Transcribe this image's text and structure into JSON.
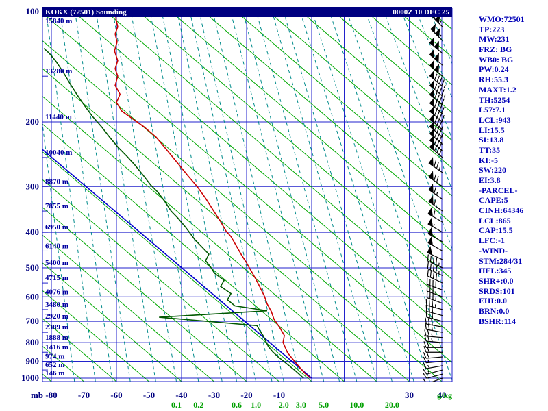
{
  "window": {
    "title": "KOKX (72501) Sounding",
    "datetime": "0000Z 10 DEC 25"
  },
  "stats_panel": {
    "lines": [
      "WMO:72501",
      "TP:223",
      "MW:231",
      "FRZ: BG",
      "WB0: BG",
      "PW:0.24",
      "RH:55.3",
      "MAXT:1.2",
      "TH:5254",
      "L57:7.1",
      "LCL:943",
      "LI:15.5",
      "SI:13.8",
      "TT:35",
      "KI:-5",
      "SW:220",
      "EI:3.8",
      "-PARCEL-",
      "CAPE:5",
      "CINH:64346",
      "LCL:865",
      "CAP:15.5",
      "LFC:-1",
      "-WIND-",
      "STM:284/31",
      "HEL:345",
      "SHR+:0.0",
      "SRDS:101",
      "EHI:0.0",
      "BRN:0.0",
      "BSHR:114"
    ]
  },
  "chart_data": {
    "type": "line",
    "subtype": "thermodynamic_sounding_log_p",
    "station": "KOKX (72501)",
    "valid": "0000Z 10 DEC 25",
    "pressure_axis_label": "mb",
    "pressure_ticks": [
      100,
      200,
      300,
      400,
      500,
      600,
      700,
      800,
      900,
      1000
    ],
    "ylim": [
      1000,
      100
    ],
    "xlim": [
      -80,
      40
    ],
    "temp_ticks": [
      -80,
      -70,
      -60,
      -50,
      -40,
      -30,
      -20,
      -10,
      0,
      10,
      20,
      30,
      40
    ],
    "temp_labels": [
      {
        "v": -80,
        "label": "-80"
      },
      {
        "v": -70,
        "label": "-70"
      },
      {
        "v": -60,
        "label": "-60"
      },
      {
        "v": -50,
        "label": "-50"
      },
      {
        "v": -40,
        "label": "-40"
      },
      {
        "v": -30,
        "label": "-30"
      },
      {
        "v": -20,
        "label": "-20"
      },
      {
        "v": -10,
        "label": "-10"
      },
      {
        "v": 30,
        "label": "30"
      },
      {
        "v": 40,
        "label": "40"
      }
    ],
    "mixing_ratio_labels": [
      0.1,
      0.2,
      0.6,
      1.0,
      2.0,
      3.0,
      5.0,
      10.0,
      20.0
    ],
    "mixing_ratio_extra": [
      0.002,
      0.005,
      0.01,
      0.02,
      0.05,
      0.4,
      1.5,
      7,
      15,
      30,
      40,
      60,
      90,
      140,
      220,
      350,
      550,
      900
    ],
    "mixing_ratio_unit": "g/kg",
    "height_labels": [
      {
        "p": 100,
        "label": "15840 m"
      },
      {
        "p": 150,
        "label": "13280 m"
      },
      {
        "p": 200,
        "label": "11440 m"
      },
      {
        "p": 250,
        "label": "10040 m"
      },
      {
        "p": 300,
        "label": "8870 m"
      },
      {
        "p": 350,
        "label": "7855 m"
      },
      {
        "p": 400,
        "label": "6950 m"
      },
      {
        "p": 450,
        "label": "6140 m"
      },
      {
        "p": 500,
        "label": "5400 m"
      },
      {
        "p": 550,
        "label": "4715 m"
      },
      {
        "p": 600,
        "label": "4076 m"
      },
      {
        "p": 650,
        "label": "3480 m"
      },
      {
        "p": 700,
        "label": "2920 m"
      },
      {
        "p": 750,
        "label": "2389 m"
      },
      {
        "p": 800,
        "label": "1888 m"
      },
      {
        "p": 850,
        "label": "1416 m"
      },
      {
        "p": 900,
        "label": "974 m"
      },
      {
        "p": 950,
        "label": "652 m"
      },
      {
        "p": 1000,
        "label": "146 m"
      }
    ],
    "temperature_profile": [
      [
        1000,
        -0.4
      ],
      [
        970,
        -2.1
      ],
      [
        910,
        -4.8
      ],
      [
        853,
        -7.4
      ],
      [
        799,
        -8.8
      ],
      [
        765,
        -8.4
      ],
      [
        726,
        -9.9
      ],
      [
        690,
        -11.6
      ],
      [
        658,
        -12.4
      ],
      [
        627,
        -13.7
      ],
      [
        598,
        -14.5
      ],
      [
        567,
        -15.8
      ],
      [
        538,
        -17.1
      ],
      [
        508,
        -18.7
      ],
      [
        485,
        -20.0
      ],
      [
        459,
        -21.7
      ],
      [
        435,
        -23.2
      ],
      [
        411,
        -24.8
      ],
      [
        397,
        -26.3
      ],
      [
        374,
        -28.0
      ],
      [
        350,
        -30.1
      ],
      [
        323,
        -32.6
      ],
      [
        300,
        -35.2
      ],
      [
        280,
        -38.1
      ],
      [
        257,
        -41.5
      ],
      [
        238,
        -44.6
      ],
      [
        220,
        -47.8
      ],
      [
        206,
        -51.6
      ],
      [
        195,
        -55.4
      ],
      [
        187,
        -58.3
      ],
      [
        177,
        -60.0
      ],
      [
        168,
        -58.9
      ],
      [
        159,
        -60.4
      ],
      [
        150,
        -59.6
      ],
      [
        143,
        -60.4
      ],
      [
        136,
        -59.6
      ],
      [
        128,
        -60.6
      ],
      [
        121,
        -59.8
      ],
      [
        115,
        -60.4
      ],
      [
        110,
        -59.6
      ],
      [
        104,
        -60.2
      ],
      [
        100,
        -59.6
      ]
    ],
    "dewpoint_profile": [
      [
        1000,
        -2.5
      ],
      [
        950,
        -5.3
      ],
      [
        903,
        -8.4
      ],
      [
        875,
        -10.3
      ],
      [
        847,
        -12.0
      ],
      [
        820,
        -13.3
      ],
      [
        793,
        -14.1
      ],
      [
        766,
        -14.9
      ],
      [
        741,
        -16.0
      ],
      [
        719,
        -16.8
      ],
      [
        682,
        -46.9
      ],
      [
        655,
        -13.7
      ],
      [
        635,
        -23.6
      ],
      [
        611,
        -25.9
      ],
      [
        588,
        -24.8
      ],
      [
        562,
        -28.0
      ],
      [
        541,
        -26.9
      ],
      [
        517,
        -29.9
      ],
      [
        500,
        -30.9
      ],
      [
        478,
        -32.6
      ],
      [
        459,
        -31.6
      ],
      [
        439,
        -33.7
      ],
      [
        420,
        -35.8
      ],
      [
        403,
        -37.3
      ],
      [
        386,
        -38.9
      ],
      [
        366,
        -41.1
      ],
      [
        350,
        -43.2
      ],
      [
        328,
        -45.3
      ],
      [
        310,
        -47.4
      ],
      [
        297,
        -49.5
      ],
      [
        278,
        -52.0
      ],
      [
        261,
        -54.5
      ],
      [
        248,
        -56.8
      ],
      [
        234,
        -59.6
      ],
      [
        220,
        -62.1
      ],
      [
        206,
        -64.6
      ],
      [
        193,
        -67.4
      ],
      [
        179,
        -70.1
      ],
      [
        168,
        -72.2
      ],
      [
        157,
        -74.3
      ],
      [
        146,
        -76.4
      ],
      [
        137,
        -78.5
      ],
      [
        130,
        -80.6
      ],
      [
        126,
        -82.3
      ]
    ],
    "parcel_line": [
      [
        1000,
        0.0
      ],
      [
        238,
        -82.7
      ]
    ],
    "wind_barbs": [
      [
        100,
        315,
        110
      ],
      [
        110,
        315,
        105
      ],
      [
        120,
        315,
        105
      ],
      [
        130,
        310,
        100
      ],
      [
        140,
        310,
        100
      ],
      [
        150,
        310,
        100
      ],
      [
        160,
        310,
        95
      ],
      [
        170,
        310,
        95
      ],
      [
        180,
        310,
        90
      ],
      [
        190,
        310,
        90
      ],
      [
        200,
        310,
        90
      ],
      [
        210,
        310,
        85
      ],
      [
        220,
        310,
        85
      ],
      [
        230,
        310,
        80
      ],
      [
        240,
        310,
        80
      ],
      [
        250,
        310,
        80
      ],
      [
        275,
        305,
        75
      ],
      [
        300,
        305,
        70
      ],
      [
        325,
        305,
        65
      ],
      [
        350,
        305,
        60
      ],
      [
        375,
        300,
        60
      ],
      [
        400,
        300,
        55
      ],
      [
        425,
        300,
        55
      ],
      [
        450,
        300,
        50
      ],
      [
        475,
        295,
        50
      ],
      [
        500,
        295,
        45
      ],
      [
        525,
        295,
        45
      ],
      [
        550,
        295,
        40
      ],
      [
        575,
        290,
        40
      ],
      [
        600,
        290,
        35
      ],
      [
        625,
        290,
        35
      ],
      [
        650,
        285,
        35
      ],
      [
        675,
        285,
        30
      ],
      [
        700,
        285,
        30
      ],
      [
        725,
        280,
        30
      ],
      [
        750,
        280,
        25
      ],
      [
        775,
        275,
        25
      ],
      [
        800,
        275,
        25
      ],
      [
        825,
        270,
        20
      ],
      [
        850,
        270,
        20
      ],
      [
        875,
        265,
        20
      ],
      [
        900,
        265,
        15
      ],
      [
        925,
        260,
        15
      ],
      [
        950,
        255,
        15
      ],
      [
        975,
        255,
        10
      ],
      [
        1000,
        250,
        10
      ]
    ],
    "colors": {
      "grid": "#2222cc",
      "adiabat": "#00a800",
      "mixing_line": "#008b8b",
      "temperature_curve": "#cc0000",
      "dewpoint_curve": "#005800",
      "parcel_line": "#0000cc",
      "wind_barb": "#000000",
      "axis_text": "#000080",
      "height_text": "#0000a0",
      "mixing_text": "#00a000",
      "titlebar_bg": "#000080",
      "titlebar_text": "#ffffff",
      "stats_text": "#0000b8"
    }
  }
}
